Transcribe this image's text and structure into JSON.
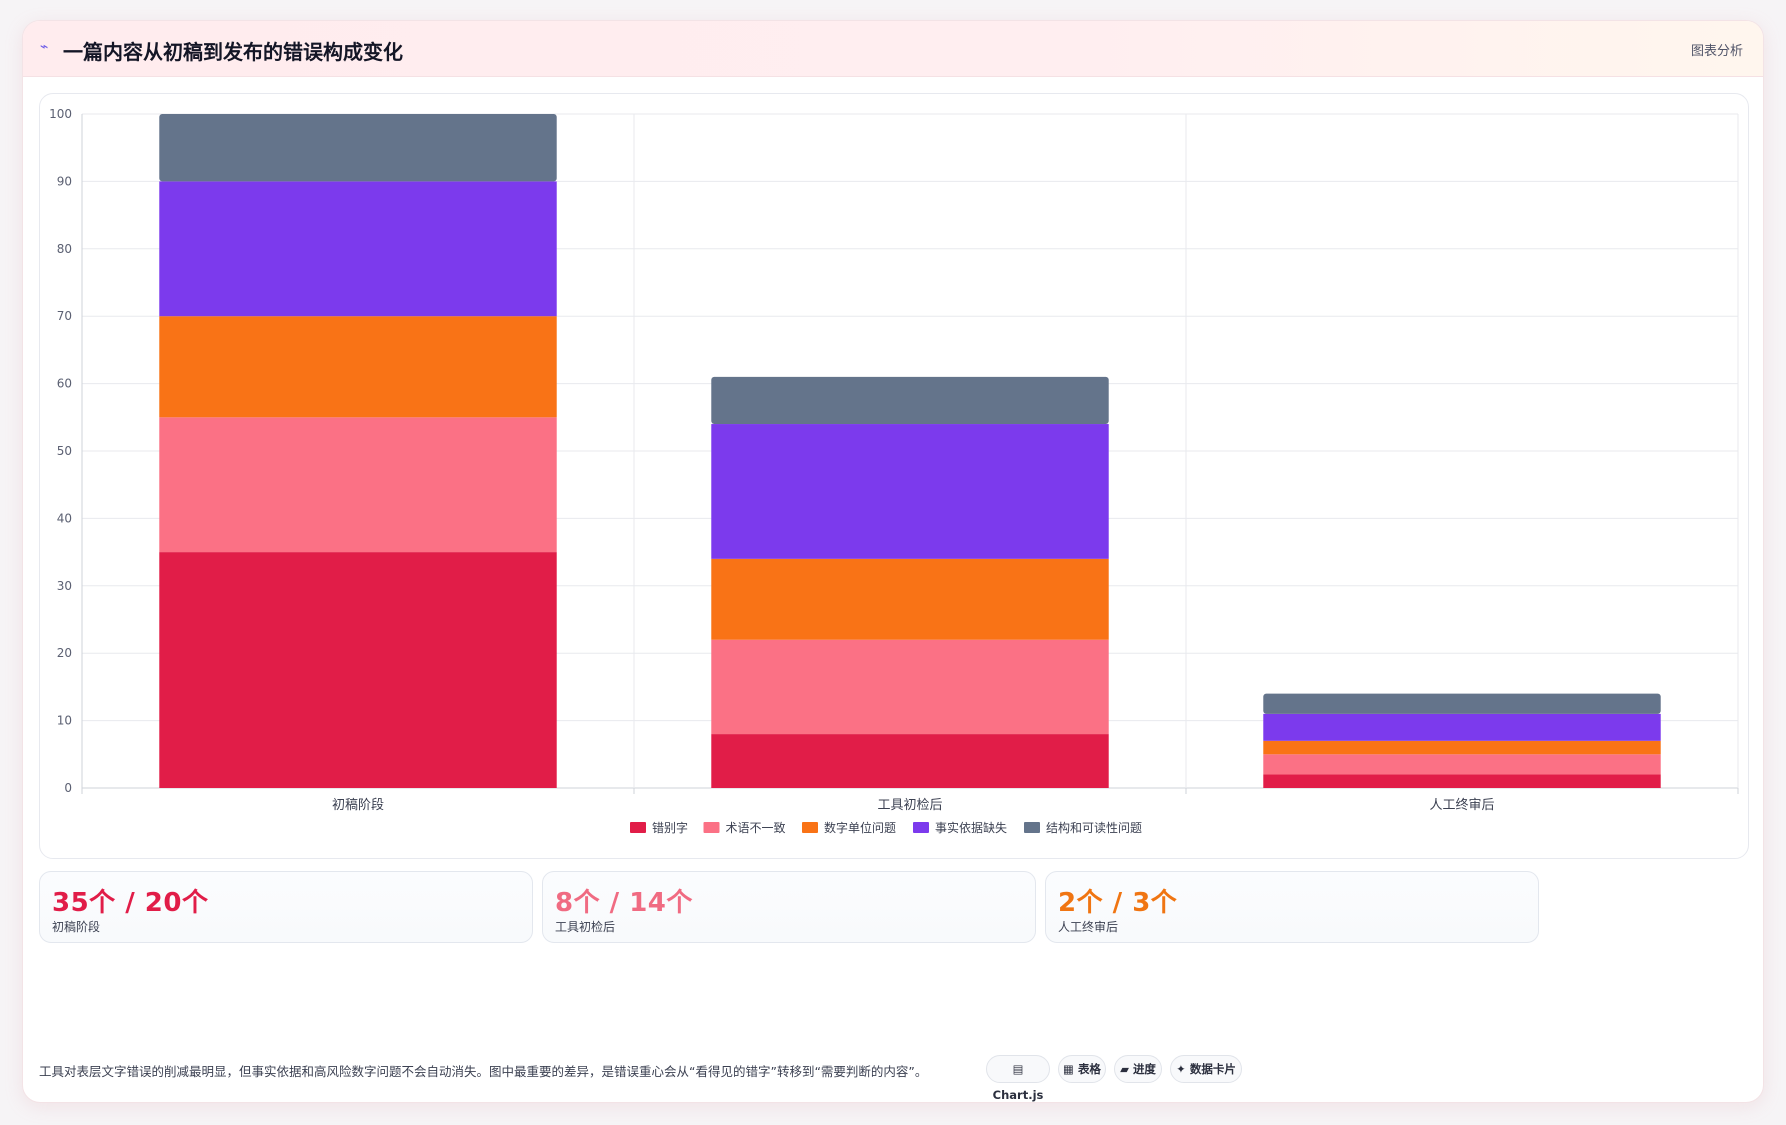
{
  "header": {
    "icon": "sparkle-icon",
    "title": "一篇内容从初稿到发布的错误构成变化",
    "badge": "图表分析"
  },
  "chart_data": {
    "type": "bar",
    "stacked": true,
    "categories": [
      "初稿阶段",
      "工具初检后",
      "人工终审后"
    ],
    "series": [
      {
        "name": "错别字",
        "color": "#e11d48",
        "values": [
          35,
          8,
          2
        ]
      },
      {
        "name": "术语不一致",
        "color": "#fb7185",
        "values": [
          20,
          14,
          3
        ]
      },
      {
        "name": "数字单位问题",
        "color": "#f97316",
        "values": [
          15,
          12,
          2
        ]
      },
      {
        "name": "事实依据缺失",
        "color": "#7c3aed",
        "values": [
          20,
          20,
          4
        ]
      },
      {
        "name": "结构和可读性问题",
        "color": "#64748b",
        "values": [
          10,
          7,
          3
        ]
      }
    ],
    "ylim": [
      0,
      100
    ],
    "yticks": [
      0,
      10,
      20,
      30,
      40,
      50,
      60,
      70,
      80,
      90,
      100
    ],
    "grid": true,
    "legend": "bottom"
  },
  "stats": [
    {
      "value": "35个 / 20个",
      "label": "初稿阶段",
      "color": "#e11d48"
    },
    {
      "value": "8个 / 14个",
      "label": "工具初检后",
      "color": "#f06b82"
    },
    {
      "value": "2个 / 3个",
      "label": "人工终审后",
      "color": "#f07512"
    }
  ],
  "footer": {
    "note": "工具对表层文字错误的削减最明显，但事实依据和高风险数字问题不会自动消失。图中最重要的差异，是错误重心会从“看得见的错字”转移到“需要判断的内容”。",
    "tags": [
      {
        "icon": "chart-icon",
        "glyph": "▤",
        "label": "Chart.js"
      },
      {
        "icon": "table-icon",
        "glyph": "▦",
        "label": "表格"
      },
      {
        "icon": "progress-icon",
        "glyph": "▰",
        "label": "进度"
      },
      {
        "icon": "card-icon",
        "glyph": "✦",
        "label": "数据卡片"
      }
    ]
  }
}
